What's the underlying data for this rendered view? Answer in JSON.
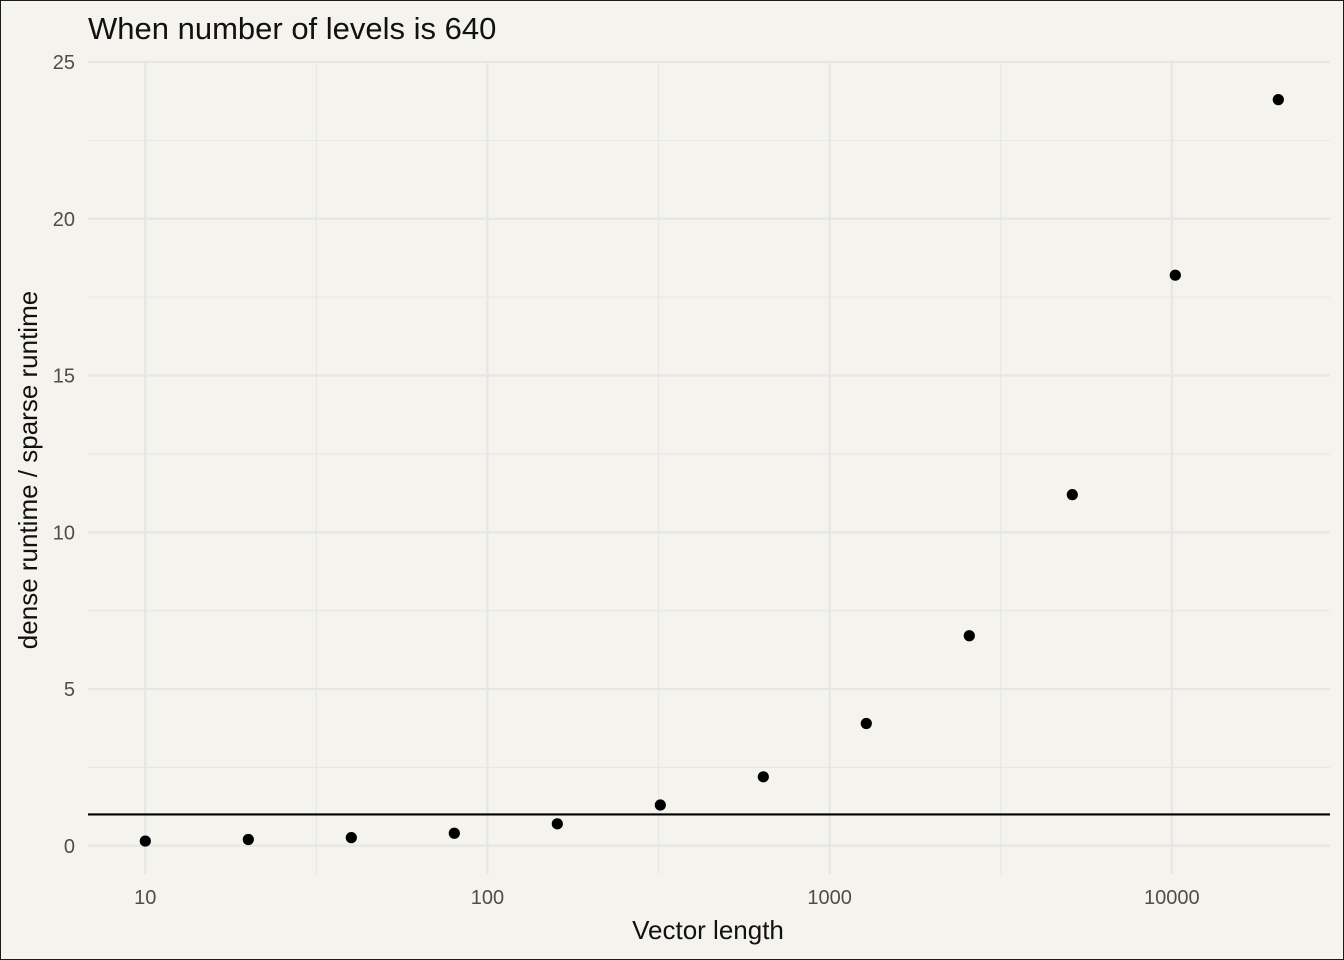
{
  "chart_data": {
    "type": "scatter",
    "title": "When number of levels is 640",
    "xlabel": "Vector length",
    "ylabel": "dense runtime / sparse runtime",
    "x_scale": "log10",
    "xlim": [
      6.8,
      29000
    ],
    "ylim": [
      -0.9,
      25.0
    ],
    "x_ticks": [
      10,
      100,
      1000,
      10000
    ],
    "x_tick_labels": [
      "10",
      "100",
      "1000",
      "10000"
    ],
    "y_ticks": [
      0,
      5,
      10,
      15,
      20,
      25
    ],
    "y_tick_labels": [
      "0",
      "5",
      "10",
      "15",
      "20",
      "25"
    ],
    "grid": true,
    "reference_line": {
      "y": 1
    },
    "point_color": "#000000",
    "points": [
      {
        "x": 10,
        "y": 0.15
      },
      {
        "x": 20,
        "y": 0.2
      },
      {
        "x": 40,
        "y": 0.26
      },
      {
        "x": 80,
        "y": 0.4
      },
      {
        "x": 160,
        "y": 0.7
      },
      {
        "x": 320,
        "y": 1.3
      },
      {
        "x": 640,
        "y": 2.2
      },
      {
        "x": 1280,
        "y": 3.9
      },
      {
        "x": 2560,
        "y": 6.7
      },
      {
        "x": 5120,
        "y": 11.2
      },
      {
        "x": 10240,
        "y": 18.2
      },
      {
        "x": 20480,
        "y": 23.8
      }
    ]
  },
  "colors": {
    "background": "#f5f3ed",
    "grid": "#e6e6e6",
    "tick_text": "#4d4d4d",
    "text": "#111111"
  }
}
